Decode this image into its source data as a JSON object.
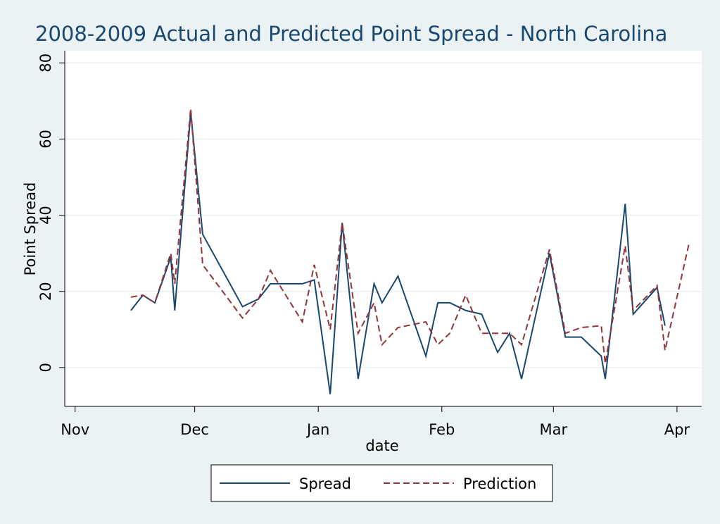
{
  "chart_data": {
    "type": "line",
    "title": "2008-2009 Actual and Predicted Point Spread - North Carolina",
    "xlabel": "date",
    "ylabel": "Point Spread",
    "x": [
      14,
      17,
      20,
      24,
      25,
      29,
      32,
      42,
      46,
      49,
      57,
      60,
      64,
      67,
      71,
      75,
      77,
      81,
      88,
      91,
      94,
      98,
      102,
      106,
      109,
      112,
      119,
      123,
      127,
      132,
      133,
      138,
      140,
      146,
      148,
      154
    ],
    "series": [
      {
        "name": "Spread",
        "color": "#1a476f",
        "dash": false,
        "values": [
          15,
          19,
          17,
          29,
          15,
          67,
          35,
          16,
          18,
          22,
          22,
          23,
          -7,
          38,
          -3,
          22,
          17,
          24,
          3,
          17,
          17,
          15,
          14,
          4,
          9,
          -3,
          30,
          8,
          8,
          3,
          -3,
          43,
          14,
          21,
          11,
          null
        ]
      },
      {
        "name": "Prediction",
        "color": "#90353b",
        "dash": true,
        "values": [
          18.5,
          19,
          17,
          30,
          22,
          68,
          27,
          13,
          18,
          25.5,
          12,
          27,
          10,
          38,
          9,
          17,
          6,
          10.5,
          12,
          6,
          9,
          19,
          9,
          9,
          9,
          6,
          31,
          9,
          10.5,
          11,
          1,
          32,
          15,
          21.5,
          4.5,
          32.5
        ]
      }
    ],
    "xlim": [
      -2.6,
      157.2
    ],
    "xticks": [
      {
        "value": 0,
        "label": "Nov"
      },
      {
        "value": 30,
        "label": "Dec"
      },
      {
        "value": 61,
        "label": "Jan"
      },
      {
        "value": 92,
        "label": "Feb"
      },
      {
        "value": 120,
        "label": "Mar"
      },
      {
        "value": 151,
        "label": "Apr"
      }
    ],
    "ylim": [
      -10.2,
      83.2
    ],
    "yticks": [
      0,
      20,
      40,
      60,
      80
    ],
    "grid": true,
    "legend": "bottom"
  }
}
